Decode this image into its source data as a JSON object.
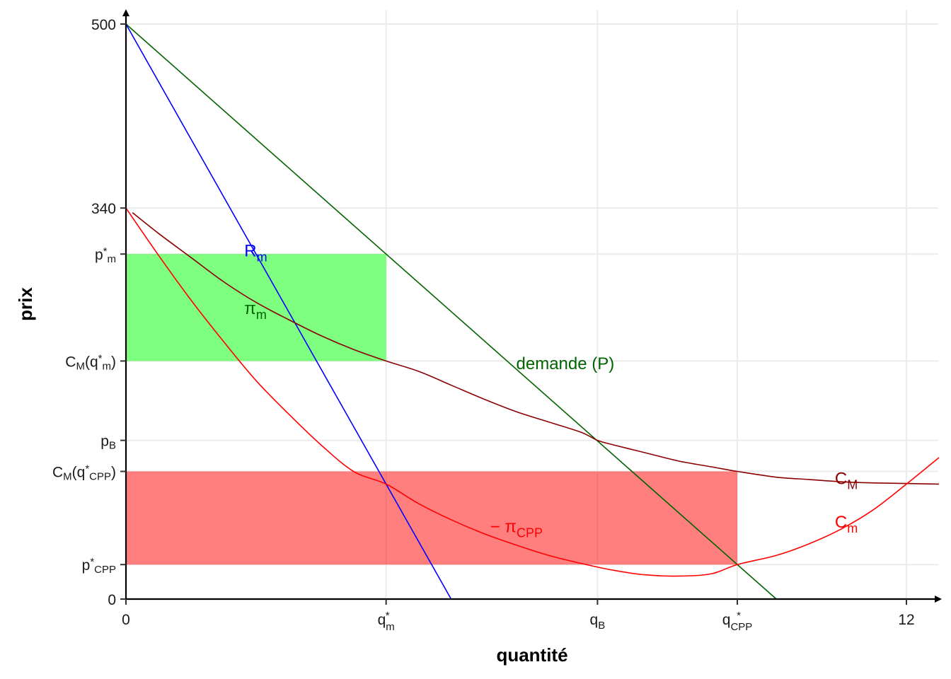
{
  "chart_data": {
    "type": "line",
    "xlabel": "quantité",
    "ylabel": "prix",
    "xlim": [
      0,
      12.5
    ],
    "ylim": [
      0,
      500
    ],
    "grid": true,
    "x_ticks": [
      {
        "value": 0,
        "base": "0",
        "sub": "",
        "sup": ""
      },
      {
        "value": 4,
        "base": "q",
        "sub": "m",
        "sup": "*"
      },
      {
        "value": 7.25,
        "base": "q",
        "sub": "B",
        "sup": ""
      },
      {
        "value": 9.4,
        "base": "q",
        "sub": "CPP",
        "sup": "*"
      },
      {
        "value": 12,
        "base": "12",
        "sub": "",
        "sup": ""
      }
    ],
    "y_ticks": [
      {
        "value": 0,
        "parts": [
          {
            "t": "0"
          }
        ]
      },
      {
        "value": 30,
        "parts": [
          {
            "t": "p"
          },
          {
            "t": "*",
            "sup": true
          },
          {
            "t": "CPP",
            "sub": true
          }
        ]
      },
      {
        "value": 111,
        "parts": [
          {
            "t": "C"
          },
          {
            "t": "M",
            "sub": true
          },
          {
            "t": "(q"
          },
          {
            "t": "*",
            "sup": true
          },
          {
            "t": "CPP",
            "sub": true
          },
          {
            "t": ")"
          }
        ]
      },
      {
        "value": 138,
        "parts": [
          {
            "t": "p"
          },
          {
            "t": "B",
            "sub": true
          }
        ]
      },
      {
        "value": 207,
        "parts": [
          {
            "t": "C"
          },
          {
            "t": "M",
            "sub": true
          },
          {
            "t": "(q"
          },
          {
            "t": "*",
            "sup": true
          },
          {
            "t": "m",
            "sub": true
          },
          {
            "t": ")"
          }
        ]
      },
      {
        "value": 300,
        "parts": [
          {
            "t": "p"
          },
          {
            "t": "*",
            "sup": true
          },
          {
            "t": "m",
            "sub": true
          }
        ]
      },
      {
        "value": 340,
        "parts": [
          {
            "t": "340"
          }
        ]
      },
      {
        "value": 500,
        "parts": [
          {
            "t": "500"
          }
        ]
      }
    ],
    "series": [
      {
        "id": "demand",
        "color": "#006400",
        "type": "line",
        "x": [
          0,
          10
        ],
        "y": [
          500,
          0
        ]
      },
      {
        "id": "marginal-revenue",
        "color": "#0000ff",
        "type": "line",
        "x": [
          0,
          5
        ],
        "y": [
          500,
          0
        ]
      },
      {
        "id": "average-cost",
        "color": "#8b0000",
        "type": "curve",
        "x": [
          0.1,
          0.5,
          1,
          1.5,
          2,
          2.5,
          3,
          3.5,
          4,
          4.5,
          5,
          5.5,
          6,
          6.5,
          7,
          7.25,
          7.5,
          8,
          8.5,
          9,
          9.4,
          10,
          10.5,
          11,
          11.5,
          12,
          12.5
        ],
        "y": [
          336,
          318,
          297,
          276,
          258,
          243,
          229,
          217,
          207,
          198,
          186,
          174,
          163,
          154,
          145,
          138,
          134,
          127,
          120,
          115,
          111,
          106,
          104,
          102,
          101,
          100.5,
          100
        ]
      },
      {
        "id": "marginal-cost",
        "color": "#ff0000",
        "type": "curve",
        "x": [
          0,
          0.5,
          1,
          1.5,
          2,
          2.5,
          3,
          3.5,
          4,
          4.5,
          5,
          5.5,
          6,
          6.5,
          7,
          7.5,
          8,
          8.5,
          9,
          9.4,
          10,
          10.5,
          11,
          11.5,
          12,
          12.5
        ],
        "y": [
          340,
          299,
          260,
          224,
          190,
          161,
          134,
          111,
          100,
          83,
          69,
          57,
          47,
          38,
          31,
          25,
          21,
          20,
          22,
          30,
          38,
          48,
          61,
          78,
          100,
          123
        ]
      }
    ],
    "areas": [
      {
        "id": "monopoly-profit",
        "color": "#00ff00",
        "opacity": 0.5,
        "x": [
          0,
          4
        ],
        "y": [
          207,
          300
        ]
      },
      {
        "id": "cpp-loss",
        "color": "#ff0000",
        "opacity": 0.5,
        "x": [
          0,
          9.4
        ],
        "y": [
          30,
          111
        ]
      }
    ],
    "labels": [
      {
        "id": "label-rm",
        "base": "R",
        "sub": "m",
        "color": "#0000ff",
        "x": 1.82,
        "y": 298
      },
      {
        "id": "label-pi-m",
        "base": "π",
        "sub": "m",
        "color": "#006400",
        "x": 1.82,
        "y": 248
      },
      {
        "id": "label-demande",
        "base": "demande (P)",
        "sub": "",
        "color": "#006400",
        "x": 6,
        "y": 200
      },
      {
        "id": "label-cm-avg",
        "base": "C",
        "sub": "M",
        "color": "#8b0000",
        "x": 10.9,
        "y": 100
      },
      {
        "id": "label-cm-marg",
        "base": "C",
        "sub": "m",
        "color": "#ff0000",
        "x": 10.9,
        "y": 62
      },
      {
        "id": "label-pi-cpp",
        "base": "− π",
        "sub": "CPP",
        "color": "#ff0000",
        "x": 5.6,
        "y": 58
      }
    ]
  }
}
